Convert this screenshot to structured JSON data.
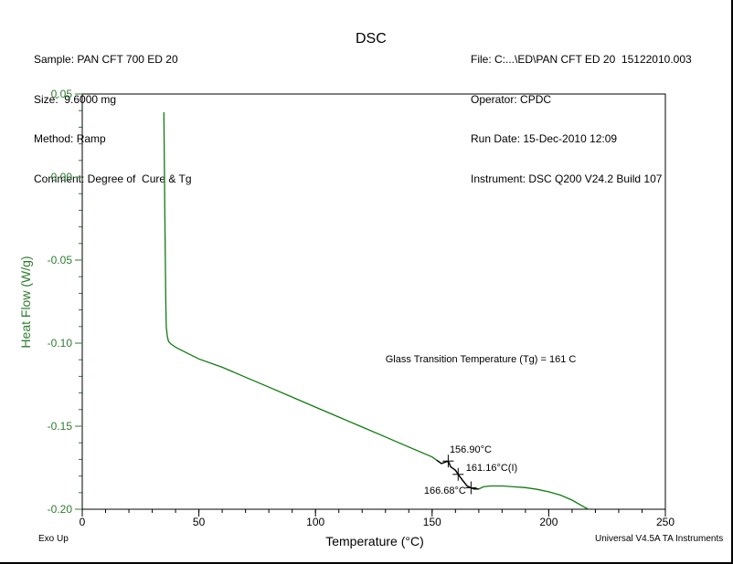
{
  "header": {
    "left": [
      "Sample: PAN CFT 700 ED 20",
      "Size:  9.6000 mg",
      "Method: Ramp",
      "Comment: Degree of  Cure & Tg"
    ],
    "right": [
      "File: C:...\\ED\\PAN CFT ED 20  15122010.003",
      "Operator: CPDC",
      "Run Date: 15-Dec-2010 12:09",
      "Instrument: DSC Q200 V24.2 Build 107"
    ]
  },
  "footer": {
    "left": "Exo Up",
    "right": "Universal V4.5A TA Instruments"
  },
  "colors": {
    "curve": "#117a11",
    "yaxis": "#2e7d2e"
  },
  "chart_data": {
    "type": "line",
    "title": "DSC",
    "xlabel": "Temperature (°C)",
    "ylabel": "Heat Flow (W/g)",
    "xlim": [
      0,
      250
    ],
    "ylim": [
      -0.2,
      0.05
    ],
    "xticks": [
      0,
      50,
      100,
      150,
      200,
      250
    ],
    "yticks": [
      0.05,
      0.0,
      -0.05,
      -0.1,
      -0.15,
      -0.2
    ],
    "grid": "minor ticks only",
    "series": [
      {
        "x": [
          35.0,
          35.2,
          35.4,
          35.6,
          35.8,
          36.0,
          36.5,
          37.0,
          38.0,
          40.0,
          45.0,
          50.0,
          60.0,
          70.0,
          80.0,
          90.0,
          100.0,
          110.0,
          120.0,
          130.0,
          140.0,
          150.0,
          152.0,
          154.0,
          156.9,
          158.0,
          160.0,
          161.16,
          163.0,
          165.0,
          166.68,
          168.0,
          170.0,
          172.0,
          175.0,
          180.0,
          185.0,
          190.0,
          195.0,
          200.0,
          205.0,
          210.0,
          215.0,
          217.0
        ],
        "y": [
          0.039,
          0.01,
          -0.02,
          -0.05,
          -0.075,
          -0.09,
          -0.096,
          -0.099,
          -0.1005,
          -0.1025,
          -0.106,
          -0.1095,
          -0.1145,
          -0.1205,
          -0.1265,
          -0.1325,
          -0.1385,
          -0.1445,
          -0.1505,
          -0.1565,
          -0.1625,
          -0.1685,
          -0.1705,
          -0.1725,
          -0.171,
          -0.1745,
          -0.1765,
          -0.179,
          -0.1825,
          -0.186,
          -0.1871,
          -0.1878,
          -0.1878,
          -0.1865,
          -0.186,
          -0.186,
          -0.1865,
          -0.187,
          -0.188,
          -0.1895,
          -0.1915,
          -0.1945,
          -0.1985,
          -0.2
        ]
      }
    ],
    "annotations": [
      {
        "text": "Glass Transition Temperature  (Tg) = 161 C",
        "x": 130,
        "y": -0.1115
      },
      {
        "text": "156.90°C",
        "x": 156.9,
        "y": -0.171,
        "label_x": 157.5,
        "label_y": -0.1658
      },
      {
        "text": "161.16°C(I)",
        "x": 161.16,
        "y": -0.179,
        "label_x": 164.5,
        "label_y": -0.1768
      },
      {
        "text": "166.68°C",
        "x": 166.68,
        "y": -0.1871,
        "label_x": 146.5,
        "label_y": -0.1906
      }
    ]
  }
}
